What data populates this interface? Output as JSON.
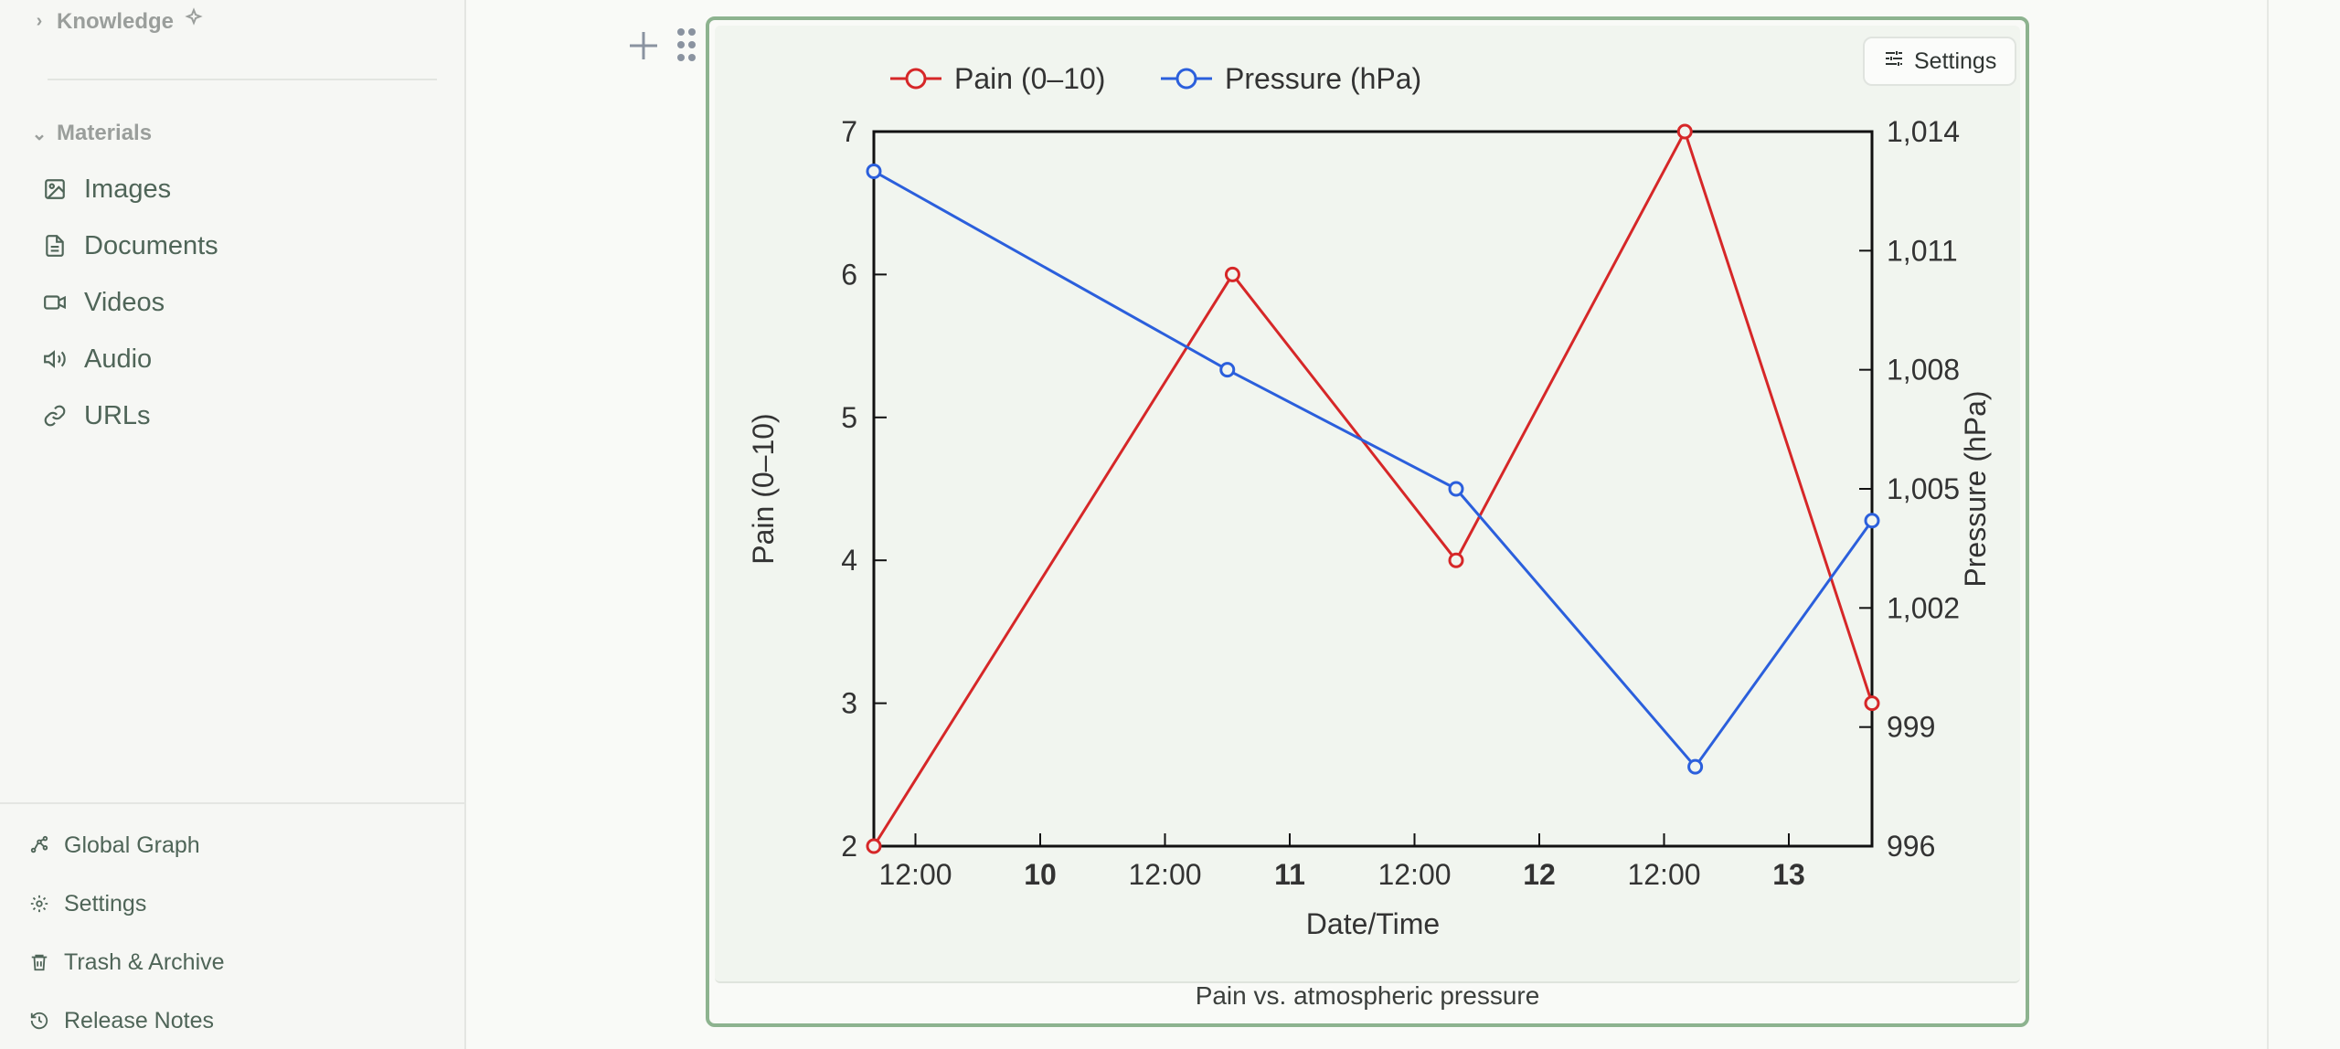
{
  "sidebar": {
    "knowledge_label": "Knowledge",
    "materials_label": "Materials",
    "items": [
      {
        "label": "Images",
        "icon": "image-icon"
      },
      {
        "label": "Documents",
        "icon": "document-icon"
      },
      {
        "label": "Videos",
        "icon": "video-icon"
      },
      {
        "label": "Audio",
        "icon": "audio-icon"
      },
      {
        "label": "URLs",
        "icon": "link-icon"
      }
    ],
    "footer": [
      {
        "label": "Global Graph",
        "icon": "graph-icon"
      },
      {
        "label": "Settings",
        "icon": "gear-icon"
      },
      {
        "label": "Trash & Archive",
        "icon": "trash-icon"
      },
      {
        "label": "Release Notes",
        "icon": "history-icon"
      }
    ]
  },
  "chart_block": {
    "settings_label": "Settings",
    "caption": "Pain vs. atmospheric pressure"
  },
  "chart_data": {
    "type": "line",
    "xlabel": "Date/Time",
    "ylabel_left": "Pain (0–10)",
    "ylabel_right": "Pressure (hPa)",
    "x_tick_labels": [
      "12:00",
      "10",
      "12:00",
      "11",
      "12:00",
      "12",
      "12:00",
      "13"
    ],
    "x_tick_bold": [
      false,
      true,
      false,
      true,
      false,
      true,
      false,
      true
    ],
    "y_left_ticks": [
      "2",
      "3",
      "4",
      "5",
      "6",
      "7"
    ],
    "y_right_ticks": [
      "996",
      "999",
      "1,002",
      "1,005",
      "1,008",
      "1,011",
      "1,014"
    ],
    "ylim_left": [
      2,
      7
    ],
    "ylim_right": [
      996,
      1014
    ],
    "legend_position": "top-left",
    "grid": false,
    "series": [
      {
        "name": "Pain (0–10)",
        "color": "#d62728",
        "axis": "left",
        "x": [
          "2023-09-09T08:00",
          "2023-09-10T18:30",
          "2023-09-11T16:00",
          "2023-09-12T14:00",
          "2023-09-13T08:00"
        ],
        "values": [
          2,
          6,
          4,
          7,
          3
        ]
      },
      {
        "name": "Pressure (hPa)",
        "color": "#2b5fdc",
        "axis": "right",
        "x": [
          "2023-09-09T08:00",
          "2023-09-10T18:00",
          "2023-09-11T16:00",
          "2023-09-12T15:00",
          "2023-09-13T08:00"
        ],
        "values": [
          1013,
          1008,
          1005,
          998,
          1004.2
        ]
      }
    ]
  }
}
